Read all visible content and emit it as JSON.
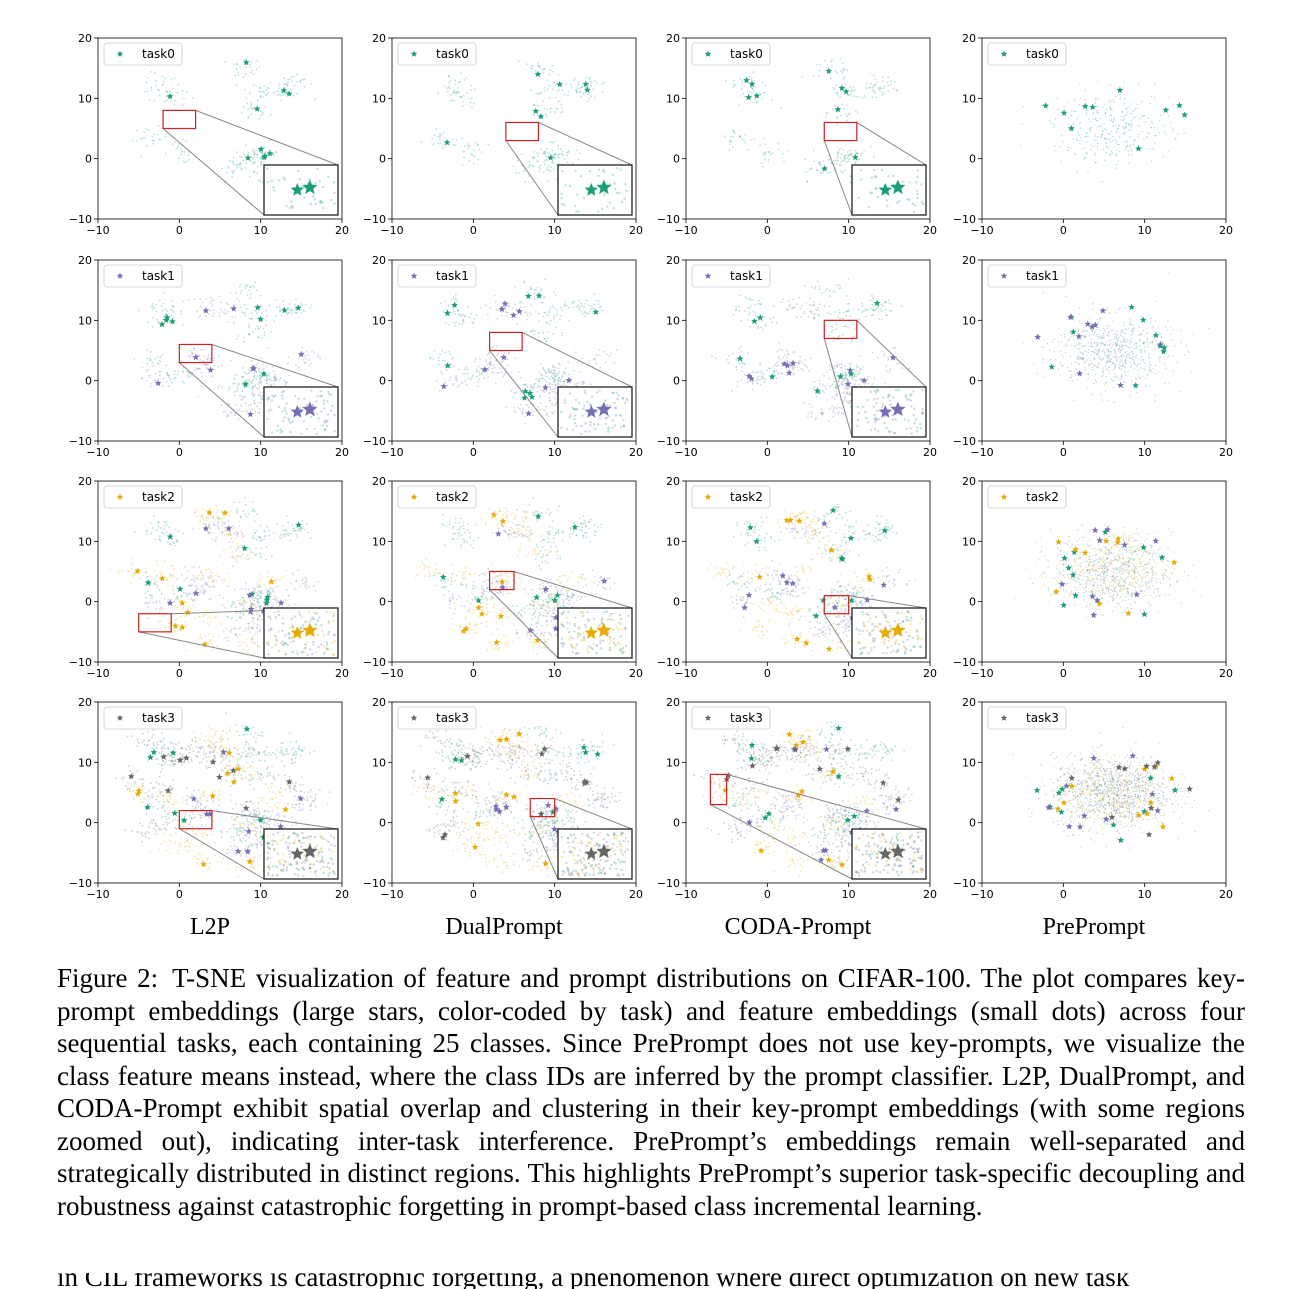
{
  "figure": {
    "methods": [
      "L2P",
      "DualPrompt",
      "CODA-Prompt",
      "PrePrompt"
    ],
    "tasks": [
      "task0",
      "task1",
      "task2",
      "task3"
    ],
    "colors": {
      "task0": "#1b9e77",
      "task1": "#7570b3",
      "task2": "#e6ab02",
      "task3": "#666666",
      "zoom_box": "#cc2222"
    }
  },
  "chart_data": {
    "type": "scatter",
    "panels": "4 rows (task0..task3) x 4 columns (L2P, DualPrompt, CODA-Prompt, PrePrompt)",
    "xlim": [
      -10,
      20
    ],
    "ylim": [
      -10,
      20
    ],
    "xticks": [
      "−10",
      "0",
      "10",
      "20"
    ],
    "yticks": [
      "−10",
      "0",
      "10",
      "20"
    ],
    "legend_position": "top-left",
    "markers": "large stars = key-prompt embeddings; small dots = feature embeddings",
    "zoom_insets": "L2P, DualPrompt, CODA-Prompt panels have a red zoom box with a bottom-right inset",
    "zoom_regions": {
      "L2P": [
        [
          -2,
          5,
          2,
          8
        ],
        [
          0,
          3,
          4,
          6
        ],
        [
          -5,
          -5,
          -1,
          -2
        ],
        [
          0,
          -1,
          4,
          2
        ]
      ],
      "DualPrompt": [
        [
          4,
          3,
          8,
          6
        ],
        [
          2,
          5,
          6,
          8
        ],
        [
          2,
          2,
          5,
          5
        ],
        [
          7,
          1,
          10,
          4
        ]
      ],
      "CODA-Prompt": [
        [
          7,
          3,
          11,
          6
        ],
        [
          7,
          7,
          11,
          10
        ],
        [
          7,
          -2,
          10,
          1
        ],
        [
          -7,
          3,
          -5,
          8
        ]
      ]
    }
  },
  "caption": {
    "label": "Figure 2:",
    "text": "T-SNE visualization of feature and prompt distributions on CIFAR-100. The plot compares key-prompt embeddings (large stars, color-coded by task) and feature embeddings (small dots) across four sequential tasks, each containing 25 classes. Since PrePrompt does not use key-prompts, we visualize the class feature means instead, where the class IDs are inferred by the prompt classifier. L2P, DualPrompt, and CODA-Prompt exhibit spatial overlap and clustering in their key-prompt embeddings (with some regions zoomed out), indicating inter-task interference. PrePrompt’s embeddings remain well-separated and strategically distributed in distinct regions. This highlights PrePrompt’s superior task-specific decoupling and robustness against catastrophic forgetting in prompt-based class incremental learning."
  },
  "body_text": "in CIL frameworks is catastrophic forgetting, a phenomenon where direct optimization on new task"
}
